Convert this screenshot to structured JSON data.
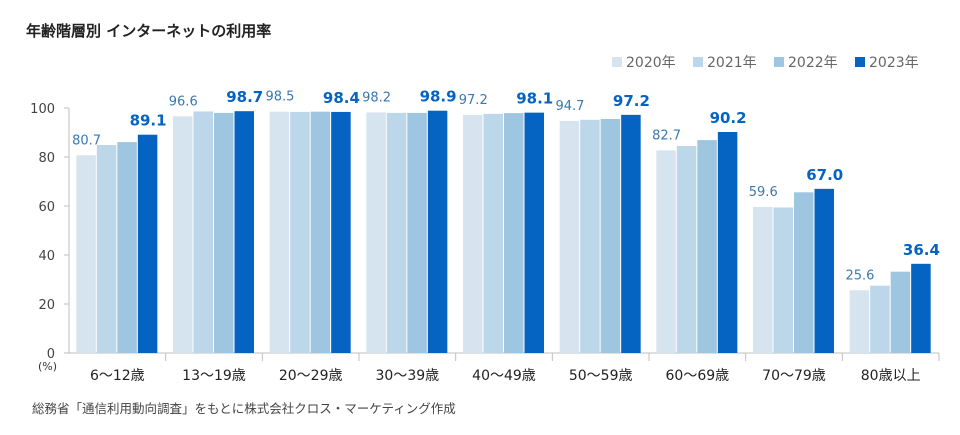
{
  "chart_data": {
    "type": "bar",
    "title": "年齢階層別 インターネットの利用率",
    "ylabel": "(%)",
    "xlabel": "",
    "ylim": [
      0,
      100
    ],
    "yticks": [
      0,
      20,
      40,
      60,
      80,
      100
    ],
    "grid": false,
    "legend_position": "top-right",
    "categories": [
      "6〜12歳",
      "13〜19歳",
      "20〜29歳",
      "30〜39歳",
      "40〜49歳",
      "50〜59歳",
      "60〜69歳",
      "70〜79歳",
      "80歳以上"
    ],
    "series": [
      {
        "name": "2020年",
        "color": "#d6e4ef",
        "values": [
          80.7,
          96.6,
          98.5,
          98.2,
          97.2,
          94.7,
          82.7,
          59.6,
          25.6
        ],
        "labeled": true
      },
      {
        "name": "2021年",
        "color": "#bdd7ea",
        "values": [
          84.9,
          98.6,
          98.4,
          98.0,
          97.6,
          95.2,
          84.5,
          59.4,
          27.5
        ],
        "labeled": false
      },
      {
        "name": "2022年",
        "color": "#9fc6e0",
        "values": [
          86.1,
          98.0,
          98.5,
          98.0,
          97.9,
          95.5,
          86.9,
          65.6,
          33.2
        ],
        "labeled": false
      },
      {
        "name": "2023年",
        "color": "#0563c1",
        "values": [
          89.1,
          98.7,
          98.4,
          98.9,
          98.1,
          97.2,
          90.2,
          67.0,
          36.4
        ],
        "labeled": true
      }
    ],
    "source": "総務省「通信利用動向調査」をもとに株式会社クロス・マーケティング作成"
  }
}
